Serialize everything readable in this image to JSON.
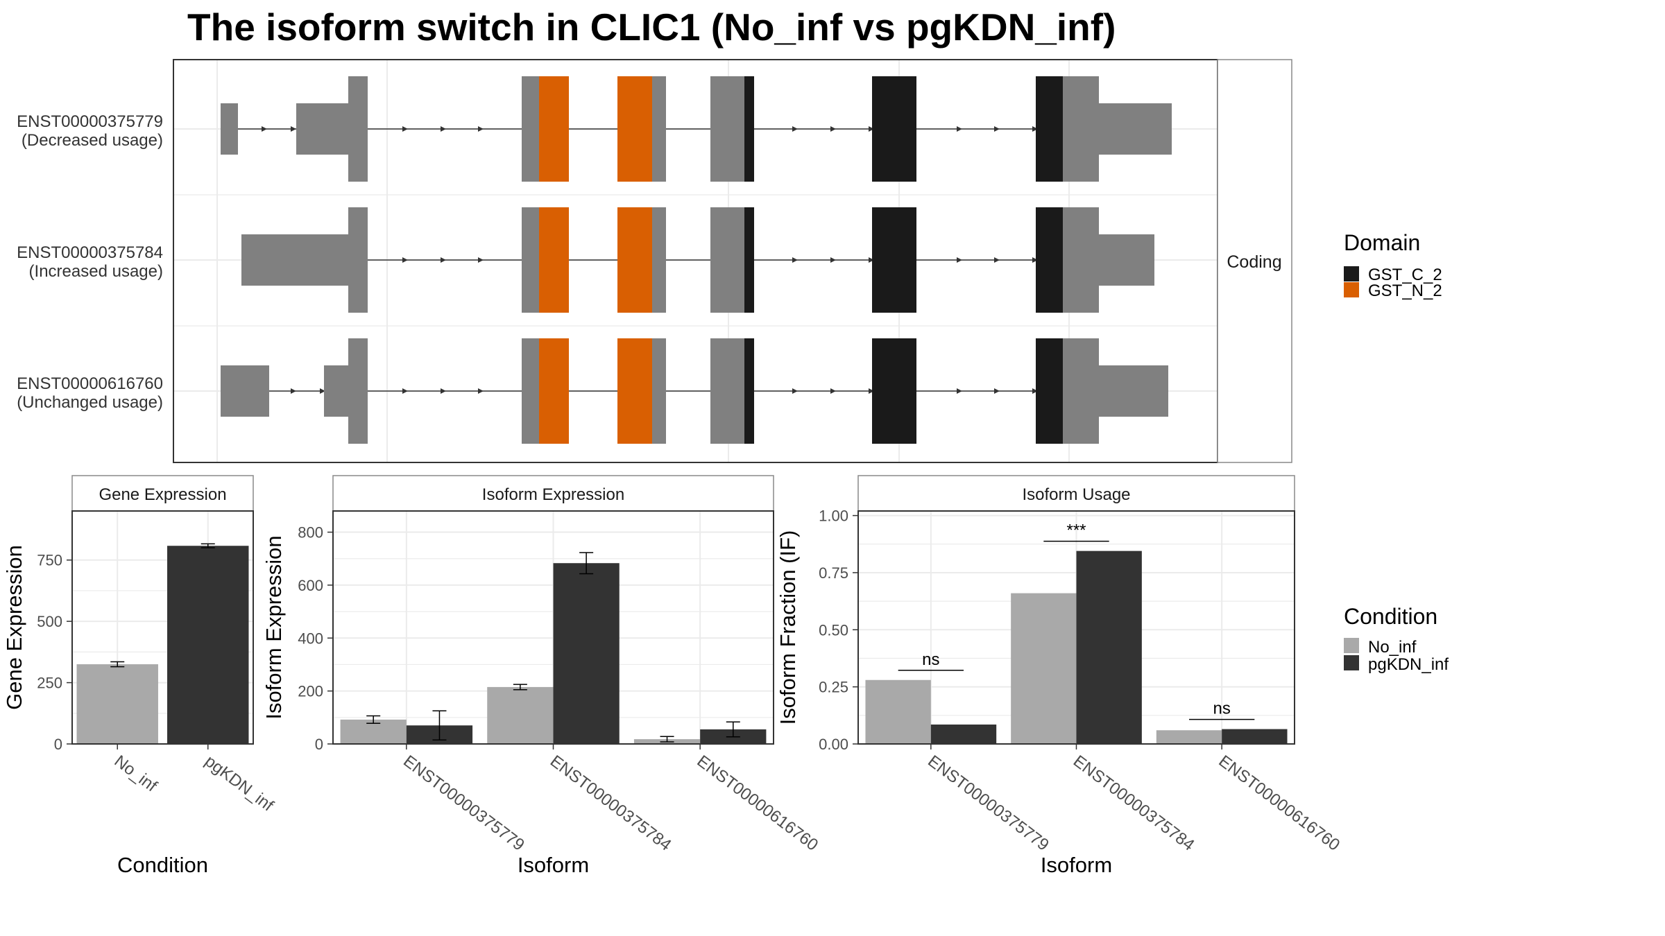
{
  "title": "The isoform switch in CLIC1 (No_inf vs pgKDN_inf)",
  "colors": {
    "domain_GST_C_2": "#1a1a1a",
    "domain_GST_N_2": "#d95f02",
    "exon": "#808080",
    "No_inf": "#a9a9a9",
    "pgKDN_inf": "#333333"
  },
  "structure_panel": {
    "strip_label": "Coding",
    "isoforms": [
      {
        "id": "ENST00000375779",
        "note": "(Decreased usage)"
      },
      {
        "id": "ENST00000375784",
        "note": "(Increased usage)"
      },
      {
        "id": "ENST00000616760",
        "note": "(Unchanged usage)"
      }
    ]
  },
  "legend_domain": {
    "title": "Domain",
    "items": [
      "GST_C_2",
      "GST_N_2"
    ]
  },
  "legend_condition": {
    "title": "Condition",
    "items": [
      "No_inf",
      "pgKDN_inf"
    ]
  },
  "chart_data": [
    {
      "type": "bar",
      "title": "Gene Expression",
      "xlabel": "Condition",
      "ylabel": "Gene Expression",
      "categories": [
        "No_inf",
        "pgKDN_inf"
      ],
      "values": [
        325,
        808
      ],
      "error": [
        10,
        8
      ],
      "ylim": [
        0,
        950
      ],
      "yticks": [
        0,
        250,
        500,
        750
      ],
      "ytick_labels": [
        "0",
        "250",
        "500",
        "750"
      ]
    },
    {
      "type": "bar",
      "title": "Isoform Expression",
      "xlabel": "Isoform",
      "ylabel": "Isoform Expression",
      "categories": [
        "ENST00000375779",
        "ENST00000375784",
        "ENST00000616760"
      ],
      "series": [
        {
          "name": "No_inf",
          "values": [
            92,
            215,
            18
          ],
          "error": [
            14,
            10,
            10
          ]
        },
        {
          "name": "pgKDN_inf",
          "values": [
            70,
            683,
            55
          ],
          "error": [
            55,
            40,
            28
          ]
        }
      ],
      "ylim": [
        0,
        880
      ],
      "yticks": [
        0,
        200,
        400,
        600,
        800
      ],
      "ytick_labels": [
        "0",
        "200",
        "400",
        "600",
        "800"
      ]
    },
    {
      "type": "bar",
      "title": "Isoform Usage",
      "xlabel": "Isoform",
      "ylabel": "Isoform Fraction (IF)",
      "categories": [
        "ENST00000375779",
        "ENST00000375784",
        "ENST00000616760"
      ],
      "series": [
        {
          "name": "No_inf",
          "values": [
            0.28,
            0.66,
            0.06
          ]
        },
        {
          "name": "pgKDN_inf",
          "values": [
            0.085,
            0.845,
            0.065
          ]
        }
      ],
      "significance": [
        "ns",
        "***",
        "ns"
      ],
      "ylim": [
        0,
        1.02
      ],
      "yticks": [
        0,
        0.25,
        0.5,
        0.75,
        1.0
      ],
      "ytick_labels": [
        "0.00",
        "0.25",
        "0.50",
        "0.75",
        "1.00"
      ]
    }
  ]
}
